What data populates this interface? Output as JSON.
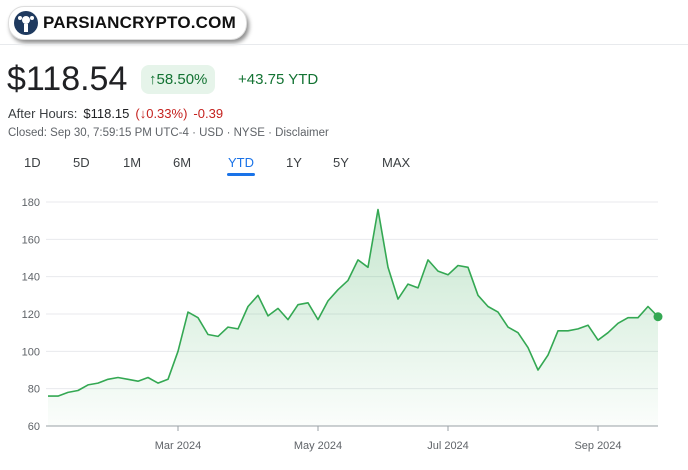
{
  "watermark": "PARSIANCRYPTO.COM",
  "header": {
    "price": "$118.54",
    "change_percent": "↑58.50%",
    "change_amount": "+43.75 YTD"
  },
  "after_hours": {
    "label": "After Hours:",
    "price": "$118.15",
    "change_percent": "(↓0.33%)",
    "change_amount": "-0.39"
  },
  "closed": {
    "text": "Closed: Sep 30, 7:59:15 PM UTC-4 · USD · NYSE · ",
    "link": "Disclaimer"
  },
  "tabs": {
    "items": [
      "1D",
      "5D",
      "1M",
      "6M",
      "YTD",
      "1Y",
      "5Y",
      "MAX"
    ],
    "selected": 4
  },
  "chart_data": {
    "type": "line",
    "categories": [
      null,
      null,
      null,
      null,
      null,
      null,
      null,
      null,
      null,
      null,
      null,
      null,
      null,
      "Mar 2024",
      null,
      null,
      null,
      null,
      null,
      null,
      null,
      null,
      null,
      null,
      null,
      null,
      null,
      "May 2024",
      null,
      null,
      null,
      null,
      null,
      null,
      null,
      null,
      null,
      null,
      null,
      null,
      "Jul 2024",
      null,
      null,
      null,
      null,
      null,
      null,
      null,
      null,
      null,
      null,
      null,
      null,
      null,
      null,
      "Sep 2024",
      null,
      null,
      null,
      null,
      null,
      null
    ],
    "series": [
      {
        "name": "Price",
        "color": "#34a853",
        "values": [
          76,
          76,
          78,
          79,
          82,
          83,
          85,
          86,
          85,
          84,
          86,
          83,
          85,
          100,
          121,
          118,
          109,
          108,
          113,
          112,
          124,
          130,
          119,
          123,
          117,
          125,
          126,
          117,
          127,
          133,
          138,
          149,
          145,
          176,
          145,
          128,
          136,
          134,
          149,
          143,
          141,
          146,
          145,
          130,
          124,
          121,
          113,
          110,
          102,
          90,
          98,
          111,
          111,
          112,
          114,
          106,
          110,
          115,
          118,
          118,
          124,
          118.54
        ]
      }
    ],
    "ylim": [
      60,
      180
    ],
    "yticks": [
      60,
      80,
      100,
      120,
      140,
      160,
      180
    ],
    "grid": true
  }
}
